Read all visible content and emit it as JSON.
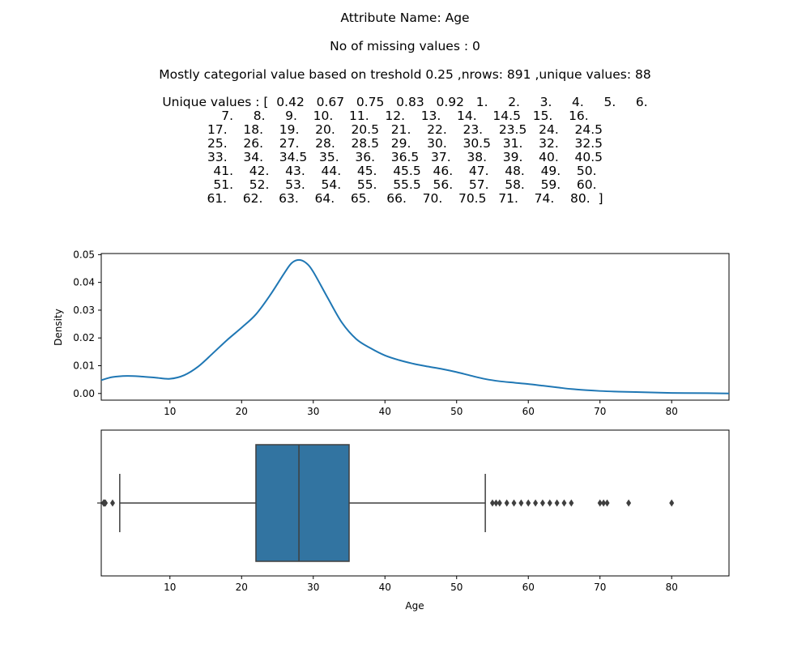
{
  "header": {
    "attribute_line": "Attribute Name: Age",
    "missing_line": "No of missing values : 0",
    "categorical_line": "Mostly categorial value based on treshold 0.25 ,nrows: 891 ,unique values: 88",
    "unique_lines": [
      "Unique values : [  0.42   0.67   0.75   0.83   0.92   1.     2.     3.     4.     5.     6.",
      "7.     8.     9.    10.    11.    12.    13.    14.    14.5   15.    16.",
      "17.    18.    19.    20.    20.5   21.    22.    23.    23.5   24.    24.5",
      "25.    26.    27.    28.    28.5   29.    30.    30.5   31.    32.    32.5",
      "33.    34.    34.5   35.    36.    36.5   37.    38.    39.    40.    40.5",
      "41.    42.    43.    44.    45.    45.5   46.    47.    48.    49.    50.",
      "51.    52.    53.    54.    55.    55.5   56.    57.    58.    59.    60.",
      "61.    62.    63.    64.    65.    66.    70.    70.5   71.    74.    80.  ]"
    ]
  },
  "chart_data": [
    {
      "type": "line",
      "title": "",
      "xlabel": "",
      "ylabel": "Density",
      "xlim": [
        0.42,
        88
      ],
      "ylim": [
        -0.0024,
        0.0504
      ],
      "xticks": [
        "10",
        "20",
        "30",
        "40",
        "50",
        "60",
        "70",
        "80"
      ],
      "yticks": [
        "0.00",
        "0.01",
        "0.02",
        "0.03",
        "0.04",
        "0.05"
      ],
      "color": "#1f77b4",
      "x": [
        0.42,
        2,
        4,
        6,
        8,
        10,
        12,
        14,
        16,
        18,
        20,
        22,
        24,
        26,
        27,
        28,
        29,
        30,
        32,
        34,
        36,
        38,
        40,
        42,
        44,
        46,
        48,
        50,
        52,
        54,
        56,
        58,
        60,
        62,
        64,
        66,
        68,
        70,
        72,
        75,
        80,
        85,
        88
      ],
      "y": [
        0.0048,
        0.0059,
        0.0063,
        0.0061,
        0.0057,
        0.0053,
        0.0066,
        0.0098,
        0.0145,
        0.0193,
        0.0237,
        0.0285,
        0.0355,
        0.0435,
        0.047,
        0.0481,
        0.047,
        0.0438,
        0.0345,
        0.0255,
        0.0196,
        0.0163,
        0.0137,
        0.012,
        0.0107,
        0.0097,
        0.0088,
        0.0077,
        0.0064,
        0.0052,
        0.0044,
        0.0039,
        0.0034,
        0.0028,
        0.0022,
        0.0016,
        0.0012,
        0.0009,
        0.0007,
        0.0005,
        0.0002,
        0.0001,
        0.0
      ]
    },
    {
      "type": "box",
      "title": "",
      "xlabel": "Age",
      "ylabel": "",
      "xlim": [
        0.42,
        88
      ],
      "xticks": [
        "10",
        "20",
        "30",
        "40",
        "50",
        "60",
        "70",
        "80"
      ],
      "box_color": "#3274a1",
      "q1": 22,
      "median": 28,
      "q3": 35,
      "whisker_low": 3,
      "whisker_high": 54,
      "outliers": [
        0.42,
        0.67,
        0.75,
        0.83,
        0.92,
        1,
        2,
        55,
        55.5,
        56,
        57,
        58,
        59,
        60,
        61,
        62,
        63,
        64,
        65,
        66,
        70,
        70.5,
        71,
        74,
        80
      ]
    }
  ]
}
